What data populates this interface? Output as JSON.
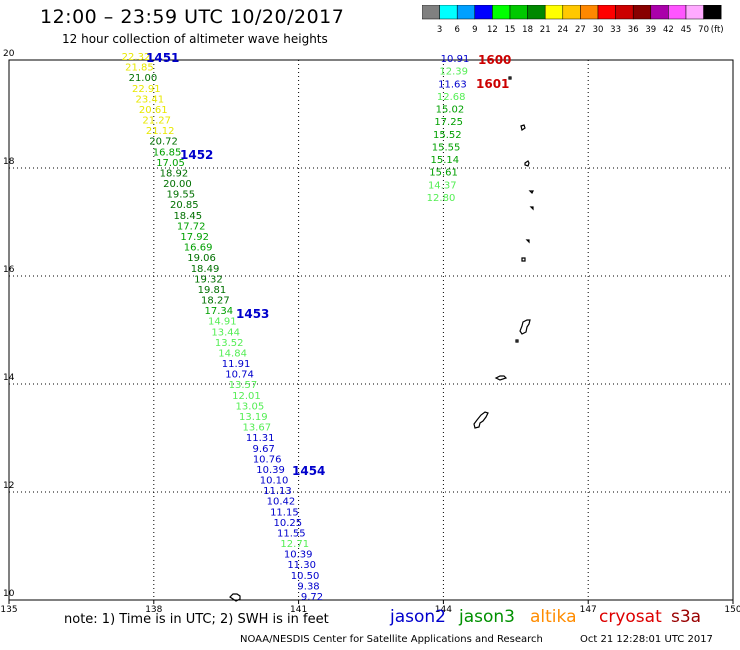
{
  "header": {
    "title": "12:00 – 23:59 UTC 10/20/2017",
    "subtitle": "12 hour collection of altimeter wave heights"
  },
  "legend": {
    "unit": "(ft)",
    "levels": [
      {
        "label": "3",
        "color": "#808080"
      },
      {
        "label": "6",
        "color": "#00ffff"
      },
      {
        "label": "9",
        "color": "#00a0ff"
      },
      {
        "label": "12",
        "color": "#0000ff"
      },
      {
        "label": "15",
        "color": "#00ff00"
      },
      {
        "label": "18",
        "color": "#00c800"
      },
      {
        "label": "21",
        "color": "#008800"
      },
      {
        "label": "24",
        "color": "#ffff00"
      },
      {
        "label": "27",
        "color": "#ffc800"
      },
      {
        "label": "30",
        "color": "#ff8800"
      },
      {
        "label": "33",
        "color": "#ff0000"
      },
      {
        "label": "36",
        "color": "#cc0000"
      },
      {
        "label": "39",
        "color": "#880000"
      },
      {
        "label": "42",
        "color": "#aa00aa"
      },
      {
        "label": "45",
        "color": "#ff55ff"
      },
      {
        "label": "70",
        "color": "#ffaaff"
      },
      {
        "label": "",
        "color": "#000000"
      }
    ]
  },
  "map": {
    "lon_min": 135,
    "lon_max": 150,
    "lat_min": 10,
    "lat_max": 20,
    "lon_ticks": [
      "135",
      "138",
      "141",
      "144",
      "147",
      "150"
    ],
    "lat_ticks": [
      "20",
      "18",
      "16",
      "14",
      "12",
      "10"
    ]
  },
  "tracks": [
    {
      "values": [
        {
          "text": "22.32",
          "color": "#e8e800"
        },
        {
          "text": "21.85",
          "color": "#e8e800"
        },
        {
          "text": "21.00",
          "color": "#007000"
        },
        {
          "text": "22.91",
          "color": "#e8e800"
        },
        {
          "text": "23.41",
          "color": "#e8e800"
        },
        {
          "text": "20.61",
          "color": "#e8e800"
        },
        {
          "text": "21.27",
          "color": "#e8e800"
        },
        {
          "text": "21.12",
          "color": "#e8e800"
        },
        {
          "text": "20.72",
          "color": "#007000"
        },
        {
          "text": "16.85",
          "color": "#00a000"
        },
        {
          "text": "17.05",
          "color": "#00a000"
        },
        {
          "text": "18.92",
          "color": "#007000"
        },
        {
          "text": "20.00",
          "color": "#007000"
        },
        {
          "text": "19.55",
          "color": "#007000"
        },
        {
          "text": "20.85",
          "color": "#007000"
        },
        {
          "text": "18.45",
          "color": "#007000"
        },
        {
          "text": "17.72",
          "color": "#00a000"
        },
        {
          "text": "17.92",
          "color": "#00a000"
        },
        {
          "text": "16.69",
          "color": "#00a000"
        },
        {
          "text": "19.06",
          "color": "#007000"
        },
        {
          "text": "18.49",
          "color": "#007000"
        },
        {
          "text": "19.32",
          "color": "#007000"
        },
        {
          "text": "19.81",
          "color": "#007000"
        },
        {
          "text": "18.27",
          "color": "#007000"
        },
        {
          "text": "17.34",
          "color": "#00a000"
        },
        {
          "text": "14.91",
          "color": "#55ee55"
        },
        {
          "text": "13.44",
          "color": "#55ee55"
        },
        {
          "text": "13.52",
          "color": "#55ee55"
        },
        {
          "text": "14.84",
          "color": "#55ee55"
        },
        {
          "text": "11.91",
          "color": "#0000cc"
        },
        {
          "text": "10.74",
          "color": "#0000cc"
        },
        {
          "text": "13.57",
          "color": "#55ee55"
        },
        {
          "text": "12.01",
          "color": "#55ee55"
        },
        {
          "text": "13.05",
          "color": "#55ee55"
        },
        {
          "text": "13.19",
          "color": "#55ee55"
        },
        {
          "text": "13.67",
          "color": "#55ee55"
        },
        {
          "text": "11.31",
          "color": "#0000cc"
        },
        {
          "text": "9.67",
          "color": "#0000cc"
        },
        {
          "text": "10.76",
          "color": "#0000cc"
        },
        {
          "text": "10.39",
          "color": "#0000cc"
        },
        {
          "text": "10.10",
          "color": "#0000cc"
        },
        {
          "text": "11.13",
          "color": "#0000cc"
        },
        {
          "text": "10.42",
          "color": "#0000cc"
        },
        {
          "text": "11.15",
          "color": "#0000cc"
        },
        {
          "text": "10.25",
          "color": "#0000cc"
        },
        {
          "text": "11.55",
          "color": "#0000cc"
        },
        {
          "text": "12.71",
          "color": "#55ee55"
        },
        {
          "text": "10.39",
          "color": "#0000cc"
        },
        {
          "text": "11.30",
          "color": "#0000cc"
        },
        {
          "text": "10.50",
          "color": "#0000cc"
        },
        {
          "text": "9.38",
          "color": "#0000cc"
        },
        {
          "text": "9.72",
          "color": "#0000cc"
        }
      ]
    },
    {
      "values": [
        {
          "text": "10.91",
          "color": "#0000cc"
        },
        {
          "text": "12.39",
          "color": "#55ee55"
        },
        {
          "text": "11.63",
          "color": "#0000cc"
        },
        {
          "text": "12.68",
          "color": "#55ee55"
        },
        {
          "text": "15.02",
          "color": "#00a000"
        },
        {
          "text": "17.25",
          "color": "#00a000"
        },
        {
          "text": "15.52",
          "color": "#00a000"
        },
        {
          "text": "15.55",
          "color": "#00a000"
        },
        {
          "text": "15.14",
          "color": "#00a000"
        },
        {
          "text": "15.61",
          "color": "#00a000"
        },
        {
          "text": "14.37",
          "color": "#55ee55"
        },
        {
          "text": "12.80",
          "color": "#55ee55"
        }
      ]
    }
  ],
  "time_labels": [
    {
      "text": "1451",
      "color": "#0000cc"
    },
    {
      "text": "1452",
      "color": "#0000cc"
    },
    {
      "text": "1453",
      "color": "#0000cc"
    },
    {
      "text": "1454",
      "color": "#0000cc"
    },
    {
      "text": "1600",
      "color": "#cc0000"
    },
    {
      "text": "1601",
      "color": "#cc0000"
    }
  ],
  "note": "note:  1) Time is in UTC;  2) SWH is in feet",
  "satellites": [
    {
      "name": "jason2",
      "color": "#0000cc"
    },
    {
      "name": "jason3",
      "color": "#009000"
    },
    {
      "name": "altika",
      "color": "#ff8c00"
    },
    {
      "name": "cryosat",
      "color": "#dd0000"
    },
    {
      "name": "s3a",
      "color": "#990000"
    }
  ],
  "footer": {
    "org": "NOAA/NESDIS Center for Satellite Applications and Research",
    "timestamp": "Oct 21 12:28:01 UTC 2017"
  }
}
